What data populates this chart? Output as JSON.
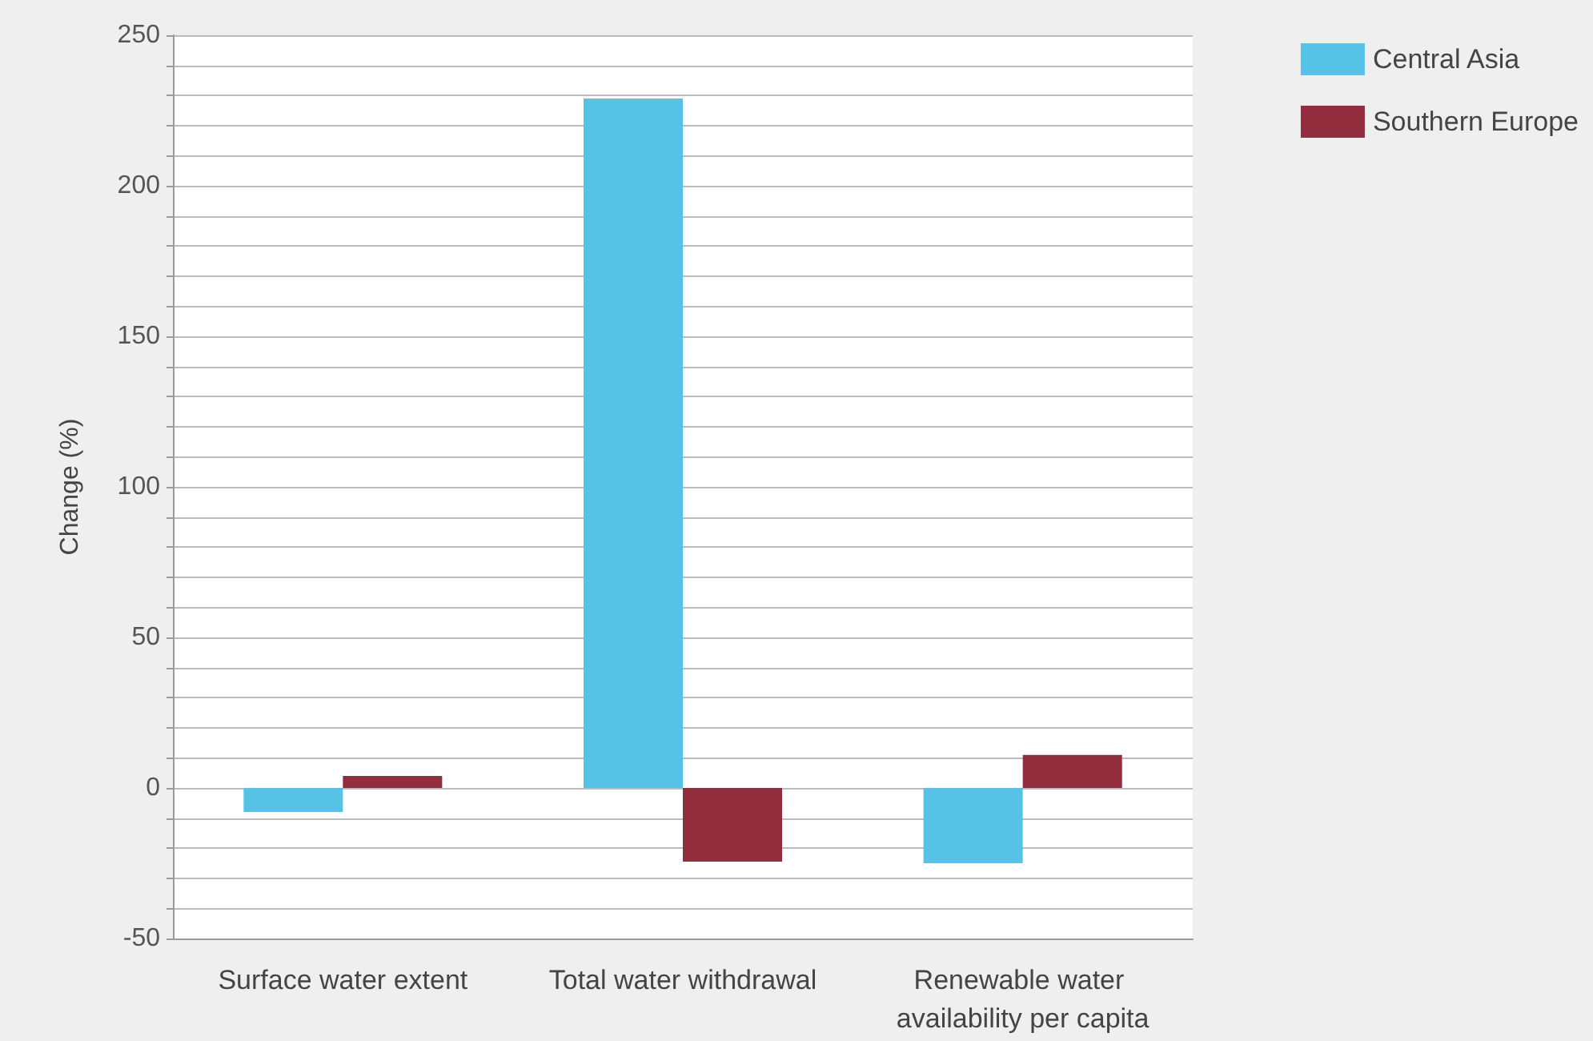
{
  "chart_data": {
    "type": "bar",
    "ylabel": "Change (%)",
    "categories": [
      "Surface water extent",
      "Total water withdrawal",
      "Renewable water availability per capita"
    ],
    "series": [
      {
        "name": "Central Asia",
        "color": "#56c3e6",
        "values": [
          -8,
          229,
          -25
        ]
      },
      {
        "name": "Southern Europe",
        "color": "#922d3e",
        "values": [
          4,
          -24.5,
          11
        ]
      }
    ],
    "ylim": [
      -50,
      250
    ],
    "yticks": [
      -50,
      {
        "value": -40,
        "label": null
      },
      {
        "value": -30,
        "label": null
      },
      {
        "value": -20,
        "label": null
      },
      {
        "value": -10,
        "label": null
      },
      0,
      {
        "value": 10,
        "label": null
      },
      {
        "value": 20,
        "label": null
      },
      {
        "value": 30,
        "label": null
      },
      {
        "value": 40,
        "label": null
      },
      50,
      {
        "value": 60,
        "label": null
      },
      {
        "value": 70,
        "label": null
      },
      {
        "value": 80,
        "label": null
      },
      {
        "value": 90,
        "label": null
      },
      100,
      {
        "value": 110,
        "label": null
      },
      {
        "value": 120,
        "label": null
      },
      {
        "value": 130,
        "label": null
      },
      {
        "value": 140,
        "label": null
      },
      150,
      {
        "value": 160,
        "label": null
      },
      {
        "value": 170,
        "label": null
      },
      {
        "value": 180,
        "label": null
      },
      {
        "value": 190,
        "label": null
      },
      200,
      {
        "value": 210,
        "label": null
      },
      {
        "value": 220,
        "label": null
      },
      {
        "value": 230,
        "label": null
      },
      {
        "value": 240,
        "label": null
      },
      250
    ],
    "grid": "y",
    "legend": "top right"
  }
}
